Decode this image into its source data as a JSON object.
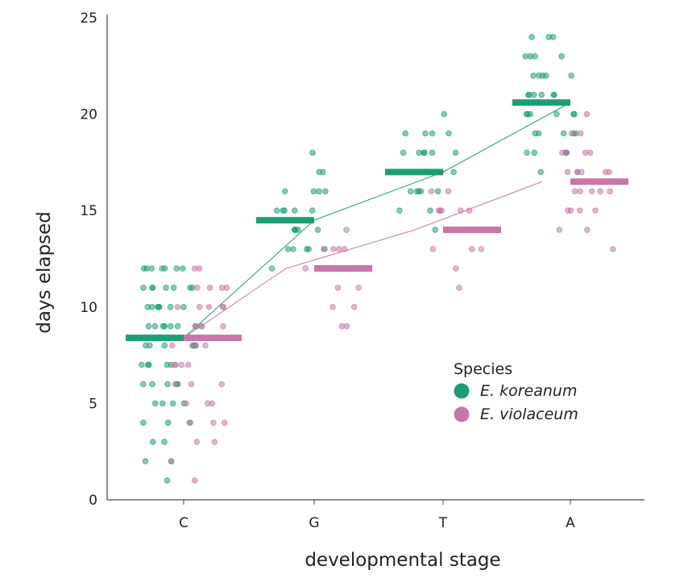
{
  "chart_data": {
    "type": "scatter",
    "title": "",
    "xlabel": "developmental stage",
    "ylabel": "days elapsed",
    "categories": [
      "C",
      "G",
      "T",
      "A"
    ],
    "yticks": [
      0,
      5,
      10,
      15,
      20,
      25
    ],
    "ylim": [
      0,
      25
    ],
    "grid": false,
    "legend": {
      "title": "Species",
      "placement": "bottom-right",
      "entries": [
        "E. koreanum",
        "E. violaceum"
      ]
    },
    "colors": {
      "E. koreanum": "#1b9e77",
      "E. violaceum": "#c875a8"
    },
    "series": [
      {
        "name": "E. koreanum",
        "means": [
          8.4,
          14.5,
          17.0,
          20.6
        ],
        "points": [
          {
            "stage": "C",
            "values": [
              1,
              2,
              2,
              3,
              3,
              4,
              4,
              4,
              5,
              5,
              5,
              5,
              6,
              6,
              6,
              6,
              6,
              7,
              7,
              7,
              7,
              7,
              8,
              8,
              8,
              8,
              8,
              8,
              9,
              9,
              9,
              9,
              9,
              9,
              9,
              10,
              10,
              10,
              10,
              10,
              10,
              10,
              11,
              11,
              11,
              11,
              11,
              11,
              11,
              12,
              12,
              12,
              12,
              12,
              12,
              12
            ]
          },
          {
            "stage": "G",
            "values": [
              12,
              13,
              13,
              13,
              13,
              13,
              14,
              14,
              14,
              14,
              14,
              15,
              15,
              15,
              15,
              15,
              16,
              16,
              16,
              16,
              17,
              17,
              18
            ]
          },
          {
            "stage": "T",
            "values": [
              14,
              15,
              15,
              16,
              16,
              16,
              16,
              16,
              17,
              17,
              17,
              17,
              18,
              18,
              18,
              18,
              18,
              18,
              19,
              19,
              19,
              19,
              20
            ]
          },
          {
            "stage": "A",
            "values": [
              17,
              17,
              18,
              18,
              18,
              18,
              19,
              19,
              19,
              19,
              19,
              20,
              20,
              20,
              20,
              20,
              20,
              21,
              21,
              21,
              21,
              21,
              21,
              22,
              22,
              22,
              22,
              22,
              23,
              23,
              23,
              23,
              24,
              24,
              24
            ]
          }
        ]
      },
      {
        "name": "E. violaceum",
        "means": [
          8.4,
          12.0,
          14.0,
          16.5
        ],
        "points": [
          {
            "stage": "C",
            "values": [
              1,
              2,
              3,
              3,
              4,
              4,
              4,
              5,
              5,
              5,
              6,
              6,
              6,
              7,
              7,
              7,
              7,
              8,
              8,
              8,
              8,
              9,
              9,
              9,
              9,
              10,
              10,
              10,
              10,
              10,
              11,
              11,
              11,
              11,
              12,
              12
            ]
          },
          {
            "stage": "G",
            "values": [
              9,
              9,
              10,
              10,
              11,
              11,
              12,
              12,
              12,
              12,
              13,
              13,
              13,
              13,
              14
            ]
          },
          {
            "stage": "T",
            "values": [
              11,
              12,
              13,
              13,
              13,
              14,
              14,
              14,
              14,
              15,
              15,
              15,
              15,
              15,
              16,
              16
            ]
          },
          {
            "stage": "A",
            "values": [
              13,
              14,
              14,
              15,
              15,
              15,
              15,
              16,
              16,
              16,
              16,
              16,
              17,
              17,
              17,
              17,
              17,
              18,
              18,
              18,
              18,
              19,
              19,
              20
            ]
          }
        ]
      }
    ]
  }
}
